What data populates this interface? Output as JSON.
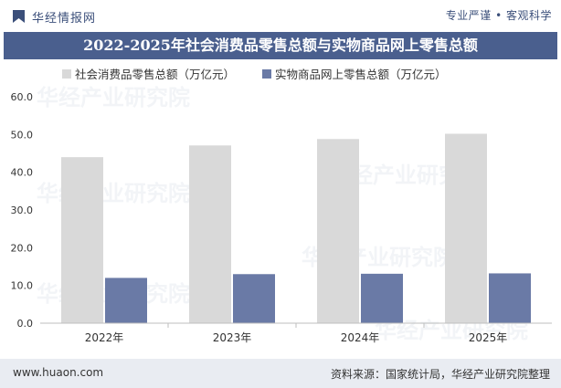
{
  "brand": {
    "name": "华经情报网",
    "tagline": "专业严谨 • 客观科学",
    "logo_icon": "bookmark-logo-icon"
  },
  "title": "2022-2025年社会消费品零售总额与实物商品网上零售总额",
  "footer": {
    "url": "www.huaon.com",
    "source": "资料来源：国家统计局，华经产业研究院整理"
  },
  "watermark": "华经产业研究院",
  "colors": {
    "title_bar": "#4a5f8e",
    "series_1": "#d9d9d9",
    "series_2": "#6a7aa6"
  },
  "chart_data": {
    "type": "bar",
    "categories": [
      "2022年",
      "2023年",
      "2024年",
      "2025年"
    ],
    "series": [
      {
        "name": "社会消费品零售总额（万亿元）",
        "values": [
          44.0,
          47.1,
          48.8,
          50.2
        ]
      },
      {
        "name": "实物商品网上零售总额（万亿元）",
        "values": [
          12.0,
          13.0,
          13.1,
          13.2
        ]
      }
    ],
    "ylim": [
      0,
      60
    ],
    "yticks": [
      "0.0",
      "10.0",
      "20.0",
      "30.0",
      "40.0",
      "50.0",
      "60.0"
    ],
    "grid": false,
    "legend_position": "top-left"
  }
}
